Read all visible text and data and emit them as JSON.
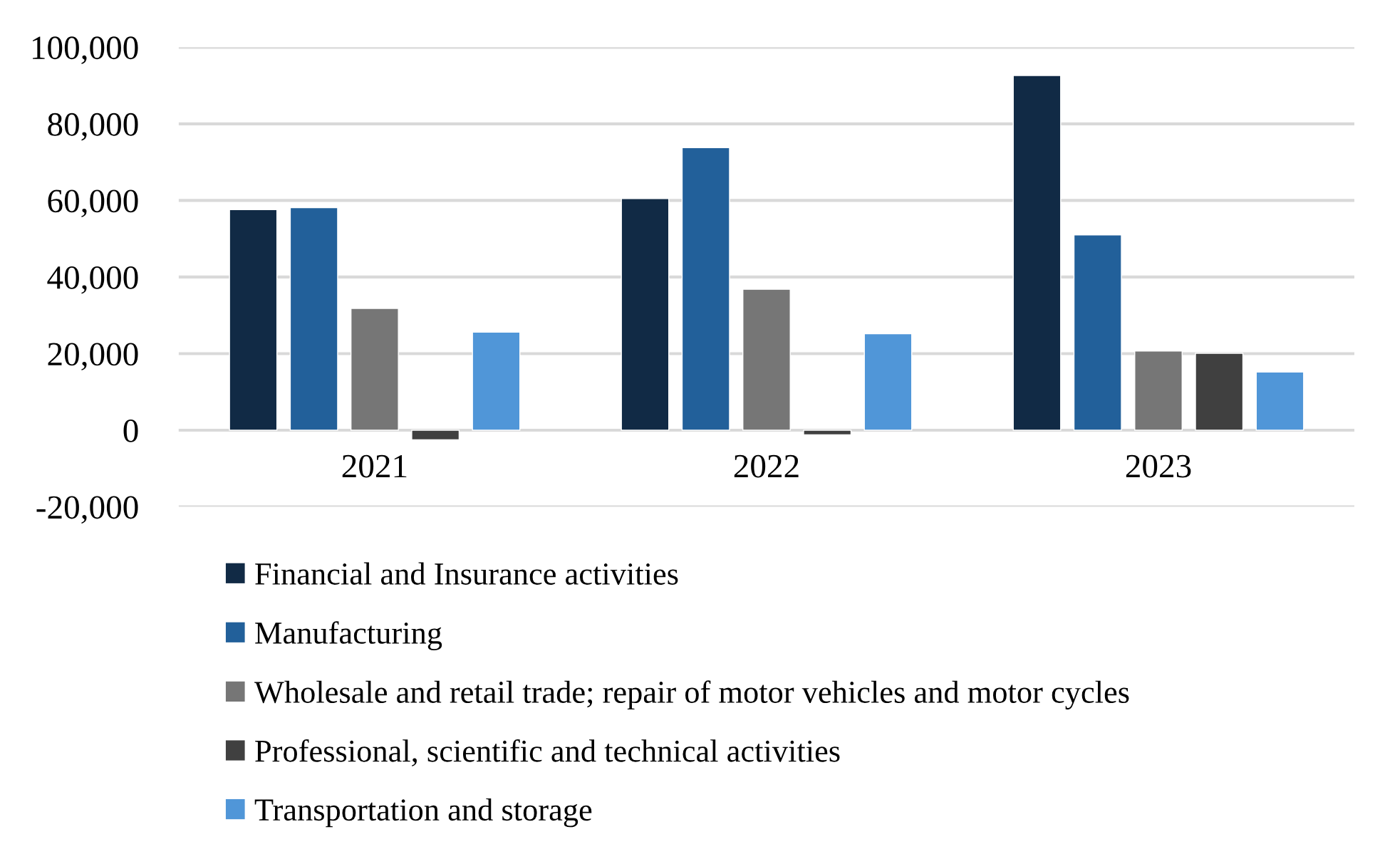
{
  "chart_data": {
    "type": "bar",
    "categories": [
      "2021",
      "2022",
      "2023"
    ],
    "series": [
      {
        "name": "Financial and Insurance activities",
        "color": "#112a45",
        "values": [
          57600,
          60500,
          92600
        ]
      },
      {
        "name": "Manufacturing",
        "color": "#22609a",
        "values": [
          58100,
          73800,
          51000
        ]
      },
      {
        "name": "Wholesale and retail trade; repair of motor vehicles and motor cycles",
        "color": "#767676",
        "values": [
          31800,
          36800,
          20700
        ]
      },
      {
        "name": "Professional, scientific and technical activities",
        "color": "#404040",
        "values": [
          -2500,
          -1200,
          20100
        ]
      },
      {
        "name": "Transportation and storage",
        "color": "#5096d8",
        "values": [
          25600,
          25200,
          15200
        ]
      }
    ],
    "ylim": [
      -20000,
      100000
    ],
    "yticks": [
      {
        "value": -20000,
        "label": "-20,000"
      },
      {
        "value": 0,
        "label": "0"
      },
      {
        "value": 20000,
        "label": "20,000"
      },
      {
        "value": 40000,
        "label": "40,000"
      },
      {
        "value": 60000,
        "label": "60,000"
      },
      {
        "value": 80000,
        "label": "80,000"
      },
      {
        "value": 100000,
        "label": "100,000"
      }
    ],
    "grid": "y",
    "legend": "bottom"
  }
}
